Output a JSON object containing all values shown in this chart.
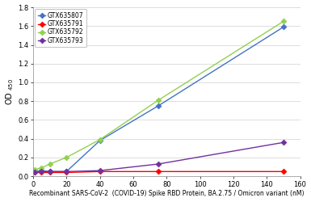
{
  "series": [
    {
      "label": "GTX635807",
      "color": "#4472C4",
      "marker": "D",
      "markersize": 3.5,
      "x": [
        1,
        5,
        10,
        20,
        40,
        75,
        150
      ],
      "y": [
        0.05,
        0.06,
        0.05,
        0.05,
        0.38,
        0.75,
        1.59
      ]
    },
    {
      "label": "GTX635791",
      "color": "#FF0000",
      "marker": "D",
      "markersize": 3.5,
      "x": [
        1,
        5,
        10,
        20,
        40,
        75,
        150
      ],
      "y": [
        0.04,
        0.04,
        0.04,
        0.04,
        0.05,
        0.05,
        0.05
      ]
    },
    {
      "label": "GTX635792",
      "color": "#92D050",
      "marker": "D",
      "markersize": 3.5,
      "x": [
        1,
        5,
        10,
        20,
        40,
        75,
        150
      ],
      "y": [
        0.07,
        0.09,
        0.13,
        0.2,
        0.39,
        0.81,
        1.65
      ]
    },
    {
      "label": "GTX635793",
      "color": "#7030A0",
      "marker": "D",
      "markersize": 3.5,
      "x": [
        1,
        5,
        10,
        20,
        40,
        75,
        150
      ],
      "y": [
        0.04,
        0.05,
        0.05,
        0.05,
        0.06,
        0.13,
        0.36
      ]
    }
  ],
  "xlabel": "Recombinant SARS-CoV-2  (COVID-19) Spike RBD Protein, BA.2.75 / Omicron variant (nM)",
  "ylim": [
    0,
    1.8
  ],
  "xlim": [
    0,
    160
  ],
  "xticks": [
    0,
    20,
    40,
    60,
    80,
    100,
    120,
    140,
    160
  ],
  "yticks": [
    0.0,
    0.2,
    0.4,
    0.6,
    0.8,
    1.0,
    1.2,
    1.4,
    1.6,
    1.8
  ],
  "background_color": "#FFFFFF",
  "grid_color": "#D0D0D0",
  "legend_loc": "upper left"
}
